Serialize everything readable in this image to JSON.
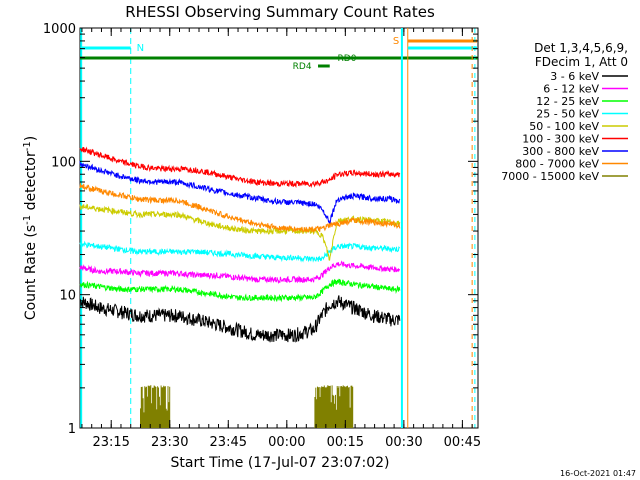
{
  "chart_data": {
    "type": "line",
    "title": "RHESSI Observing Summary Count Rates",
    "xlabel": "Start Time (17-Jul-07 23:07:02)",
    "ylabel": "Count Rate (s",
    "ylabel_sup": "-1",
    "ylabel_tail": " detector",
    "ylabel_sup2": "-1",
    "ylabel_close": ")",
    "y_scale": "log",
    "ylim": [
      1,
      1000
    ],
    "xlim_minutes": [
      0,
      102
    ],
    "x_ticks": [
      {
        "label": "23:15",
        "minutes": 8
      },
      {
        "label": "23:30",
        "minutes": 23
      },
      {
        "label": "23:45",
        "minutes": 38
      },
      {
        "label": "00:00",
        "minutes": 53
      },
      {
        "label": "00:15",
        "minutes": 68
      },
      {
        "label": "00:30",
        "minutes": 83
      },
      {
        "label": "00:45",
        "minutes": 98
      }
    ],
    "y_ticks": [
      {
        "label": "1",
        "value": 1
      },
      {
        "label": "10",
        "value": 10
      },
      {
        "label": "100",
        "value": 100
      },
      {
        "label": "1000",
        "value": 1000
      }
    ],
    "legend_placement": "right",
    "legend_header": [
      "Det 1,3,4,5,6,9,",
      "FDecim 1, Att 0"
    ],
    "series": [
      {
        "name": "3 - 6 keV",
        "color": "#000000",
        "minutes": [
          0,
          5,
          10,
          15,
          20,
          25,
          30,
          35,
          40,
          45,
          50,
          55,
          60,
          62,
          64,
          66,
          70,
          75,
          80,
          82
        ],
        "values": [
          9,
          8,
          7.5,
          7,
          7,
          7,
          6.5,
          6,
          5.5,
          5,
          5,
          5,
          5.5,
          7,
          8.5,
          9,
          8,
          7,
          6.5,
          6.5
        ]
      },
      {
        "name": "6 - 12 keV",
        "color": "#ff00ff",
        "minutes": [
          0,
          5,
          10,
          15,
          20,
          25,
          30,
          35,
          40,
          45,
          50,
          55,
          60,
          62,
          64,
          66,
          70,
          75,
          80,
          82
        ],
        "values": [
          16,
          15,
          15,
          14.5,
          14.5,
          14.5,
          14,
          14,
          13.5,
          13,
          13,
          13,
          13,
          14,
          16,
          17,
          16.5,
          16,
          15.5,
          15.5
        ]
      },
      {
        "name": "12 - 25 keV",
        "color": "#00ff00",
        "minutes": [
          0,
          5,
          10,
          15,
          20,
          25,
          30,
          35,
          40,
          45,
          50,
          55,
          60,
          62,
          64,
          66,
          70,
          75,
          80,
          82
        ],
        "values": [
          12,
          11.5,
          11,
          11,
          11,
          11,
          10.5,
          10,
          9.5,
          9.5,
          9.5,
          9.5,
          9.5,
          10.5,
          12,
          12.5,
          12,
          11.5,
          11,
          11
        ]
      },
      {
        "name": "25 - 50 keV",
        "color": "#00ffff",
        "minutes": [
          0,
          5,
          10,
          15,
          20,
          25,
          30,
          35,
          40,
          45,
          50,
          55,
          60,
          62,
          64,
          66,
          70,
          75,
          80,
          82
        ],
        "values": [
          24,
          23,
          22,
          21,
          21,
          21,
          21,
          20.5,
          20,
          19.5,
          19,
          19,
          18.5,
          18.5,
          21,
          23,
          23,
          22.5,
          22,
          22
        ]
      },
      {
        "name": "50 - 100 keV",
        "color": "#cccc00",
        "minutes": [
          0,
          5,
          10,
          15,
          20,
          25,
          30,
          35,
          40,
          45,
          50,
          55,
          60,
          62,
          64,
          66,
          70,
          75,
          80,
          82
        ],
        "values": [
          46,
          44,
          42,
          40,
          40,
          40,
          36,
          33,
          31,
          30,
          30,
          30,
          30,
          28,
          18,
          36,
          37,
          36,
          35,
          34
        ]
      },
      {
        "name": "100 - 300 keV",
        "color": "#ff0000",
        "minutes": [
          0,
          5,
          10,
          15,
          20,
          25,
          30,
          35,
          40,
          45,
          50,
          55,
          60,
          62,
          64,
          66,
          70,
          75,
          80,
          82
        ],
        "values": [
          125,
          112,
          100,
          92,
          88,
          88,
          86,
          80,
          74,
          70,
          68,
          68,
          68,
          70,
          72,
          80,
          82,
          80,
          80,
          80
        ]
      },
      {
        "name": "300 - 800 keV",
        "color": "#0000ff",
        "minutes": [
          0,
          5,
          10,
          15,
          20,
          25,
          30,
          35,
          40,
          45,
          50,
          55,
          60,
          62,
          64,
          66,
          70,
          75,
          80,
          82
        ],
        "values": [
          96,
          86,
          78,
          72,
          70,
          70,
          65,
          60,
          56,
          53,
          50,
          49,
          48,
          44,
          35,
          52,
          55,
          53,
          52,
          50
        ]
      },
      {
        "name": "800 - 7000 keV",
        "color": "#ff8800",
        "minutes": [
          0,
          5,
          10,
          15,
          20,
          25,
          30,
          35,
          40,
          45,
          50,
          55,
          60,
          62,
          64,
          66,
          70,
          75,
          80,
          82
        ],
        "values": [
          66,
          60,
          56,
          52,
          51,
          51,
          46,
          41,
          37,
          34,
          32,
          31,
          31,
          31,
          33,
          34,
          36,
          35,
          34,
          33
        ]
      },
      {
        "name": "7000 - 15000 keV",
        "color": "#808000",
        "minutes": [
          17,
          20,
          23,
          25,
          27,
          30,
          60,
          62,
          64,
          66,
          68,
          70
        ],
        "values": [
          1,
          1,
          1,
          1,
          1,
          1,
          1,
          1,
          1,
          1,
          1,
          1
        ]
      }
    ],
    "annotations": {
      "night_marker": "N",
      "saa_marker": "S",
      "rd0_label": "RD0",
      "rd4_label": "RD4"
    },
    "colors": {
      "cyan_band": "#00ffff",
      "green_band": "#008000",
      "orange_band": "#ff8800",
      "dashed_marker": "#00ffff",
      "orange_marker": "#ff8800"
    }
  },
  "footer": {
    "timestamp": "16-Oct-2021 01:47"
  }
}
